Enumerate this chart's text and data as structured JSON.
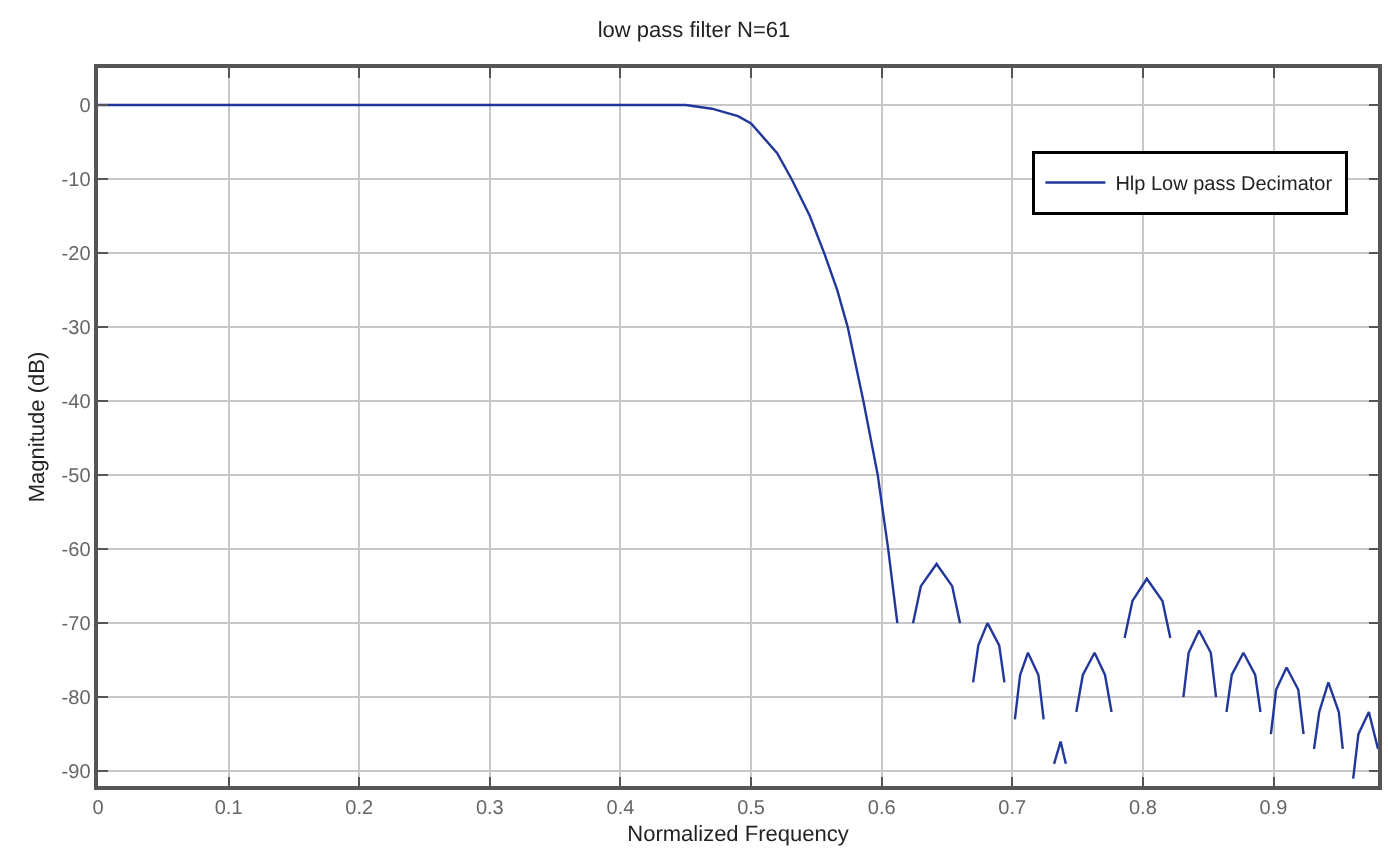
{
  "chart_data": {
    "type": "line",
    "title": "low pass filter N=61",
    "xlabel": "Normalized Frequency",
    "ylabel": "Magnitude (dB)",
    "xlim": [
      0,
      0.98
    ],
    "ylim": [
      -92,
      5
    ],
    "xticks": [
      0,
      0.1,
      0.2,
      0.3,
      0.4,
      0.5,
      0.6,
      0.7,
      0.8,
      0.9
    ],
    "yticks": [
      0,
      -10,
      -20,
      -30,
      -40,
      -50,
      -60,
      -70,
      -80,
      -90
    ],
    "grid": true,
    "legend": "top right",
    "marker": "none",
    "line_style": "solid",
    "series": [
      {
        "name": "Hlp Low pass Decimator",
        "color": "#22379b",
        "x": [
          0,
          0.2,
          0.45,
          0.47,
          0.49,
          0.5,
          0.52,
          0.531,
          0.545,
          0.556,
          0.566,
          0.574,
          0.586,
          0.597,
          0.605,
          0.612,
          0.618,
          0.624,
          0.63,
          0.642,
          0.654,
          0.66,
          0.666,
          0.67,
          0.674,
          0.681,
          0.69,
          0.694,
          0.698,
          0.702,
          0.706,
          0.712,
          0.72,
          0.724,
          0.728,
          0.732,
          0.737,
          0.741,
          0.745,
          0.749,
          0.754,
          0.763,
          0.771,
          0.776,
          0.78,
          0.786,
          0.792,
          0.803,
          0.815,
          0.821,
          0.827,
          0.831,
          0.835,
          0.843,
          0.852,
          0.856,
          0.86,
          0.864,
          0.868,
          0.877,
          0.886,
          0.89,
          0.894,
          0.898,
          0.902,
          0.91,
          0.919,
          0.923,
          0.927,
          0.931,
          0.935,
          0.942,
          0.95,
          0.953,
          0.957,
          0.961,
          0.965,
          0.973,
          0.98
        ],
        "values": [
          0,
          0,
          0,
          -0.5,
          -1.5,
          -2.5,
          -6.5,
          -10,
          -15,
          -20,
          -25,
          -30,
          -40,
          -50,
          -60,
          -70,
          null,
          -70,
          -65,
          -62,
          -65,
          -70,
          null,
          -78,
          -73,
          -70,
          -73,
          -78,
          null,
          -83,
          -77,
          -74,
          -77,
          -83,
          null,
          -89,
          -86,
          -89,
          null,
          -82,
          -77,
          -74,
          -77,
          -82,
          null,
          -72,
          -67,
          -64,
          -67,
          -72,
          null,
          -80,
          -74,
          -71,
          -74,
          -80,
          null,
          -82,
          -77,
          -74,
          -77,
          -82,
          null,
          -85,
          -79,
          -76,
          -79,
          -85,
          null,
          -87,
          -82,
          -78,
          -82,
          -87,
          null,
          -91,
          -85,
          -82,
          -87
        ]
      }
    ]
  }
}
